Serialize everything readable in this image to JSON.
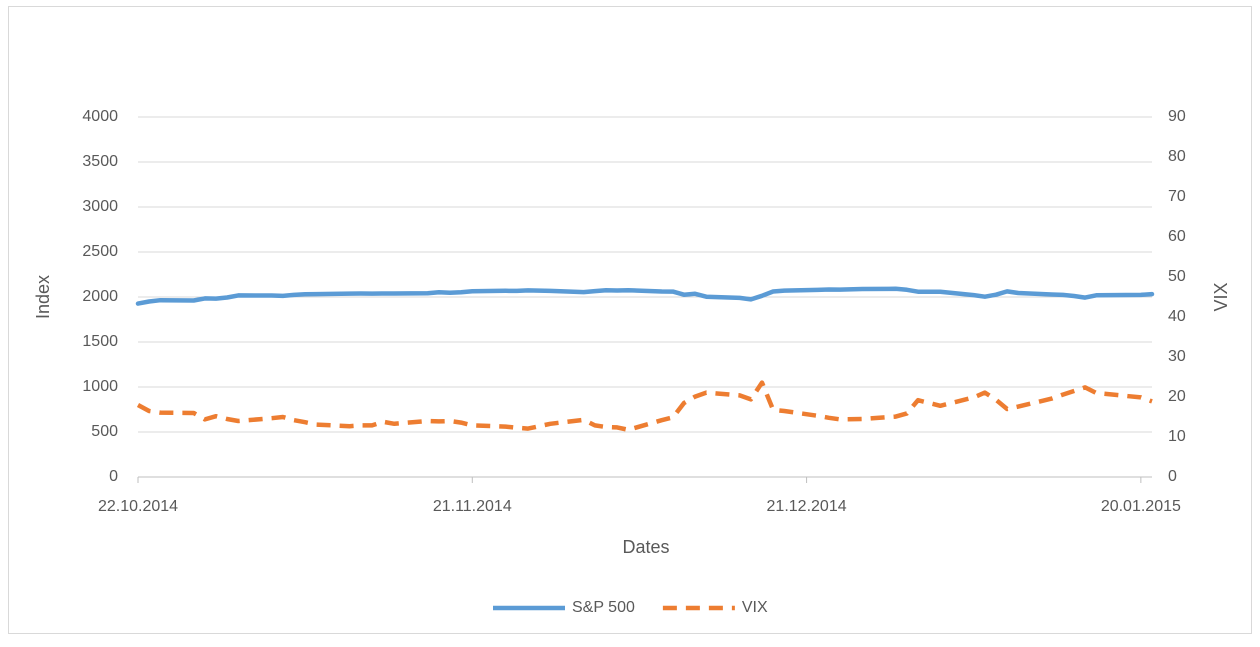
{
  "chart_data": {
    "type": "line",
    "x_label": "Dates",
    "y_label": "Index",
    "y2_label": "VIX",
    "x": [
      "22.10.2014",
      "23.10.2014",
      "24.10.2014",
      "27.10.2014",
      "28.10.2014",
      "29.10.2014",
      "30.10.2014",
      "31.10.2014",
      "03.11.2014",
      "04.11.2014",
      "05.11.2014",
      "06.11.2014",
      "07.11.2014",
      "10.11.2014",
      "11.11.2014",
      "12.11.2014",
      "13.11.2014",
      "14.11.2014",
      "17.11.2014",
      "18.11.2014",
      "19.11.2014",
      "20.11.2014",
      "21.11.2014",
      "24.11.2014",
      "25.11.2014",
      "26.11.2014",
      "28.11.2014",
      "01.12.2014",
      "02.12.2014",
      "03.12.2014",
      "04.12.2014",
      "05.12.2014",
      "08.12.2014",
      "09.12.2014",
      "10.12.2014",
      "11.12.2014",
      "12.12.2014",
      "15.12.2014",
      "16.12.2014",
      "17.12.2014",
      "18.12.2014",
      "19.12.2014",
      "22.12.2014",
      "23.12.2014",
      "24.12.2014",
      "26.12.2014",
      "29.12.2014",
      "30.12.2014",
      "31.12.2014",
      "02.01.2015",
      "05.01.2015",
      "06.01.2015",
      "07.01.2015",
      "08.01.2015",
      "09.01.2015",
      "12.01.2015",
      "13.01.2015",
      "14.01.2015",
      "15.01.2015",
      "16.01.2015",
      "20.01.2015",
      "21.01.2015"
    ],
    "series": [
      {
        "name": "S&P 500",
        "color": "#5b9bd5",
        "axis": "y",
        "values": [
          1927,
          1950,
          1964,
          1961,
          1985,
          1982,
          1994,
          2018,
          2017,
          2012,
          2023,
          2031,
          2032,
          2038,
          2039,
          2038,
          2039,
          2039,
          2041,
          2052,
          2048,
          2053,
          2064,
          2069,
          2068,
          2073,
          2068,
          2054,
          2066,
          2075,
          2072,
          2076,
          2061,
          2060,
          2026,
          2036,
          2003,
          1990,
          1973,
          2013,
          2061,
          2071,
          2079,
          2083,
          2082,
          2089,
          2091,
          2080,
          2059,
          2058,
          2021,
          2003,
          2026,
          2062,
          2045,
          2028,
          2023,
          2011,
          1993,
          2019,
          2023,
          2032
        ]
      },
      {
        "name": "VIX",
        "color": "#ed7d31",
        "axis": "y2",
        "dash": true,
        "values": [
          18.0,
          16.5,
          16.1,
          16.0,
          14.4,
          15.2,
          14.5,
          14.0,
          14.7,
          15.0,
          14.2,
          13.7,
          13.1,
          12.7,
          12.9,
          12.9,
          13.8,
          13.3,
          14.0,
          13.9,
          14.0,
          13.6,
          12.9,
          12.6,
          12.3,
          12.1,
          13.3,
          14.3,
          12.9,
          12.5,
          12.4,
          11.8,
          14.2,
          14.9,
          18.5,
          20.1,
          21.1,
          20.4,
          19.4,
          23.6,
          16.8,
          16.5,
          15.3,
          14.8,
          14.4,
          14.5,
          15.1,
          15.9,
          19.2,
          17.8,
          19.9,
          21.1,
          19.3,
          17.0,
          17.6,
          19.6,
          20.6,
          21.5,
          22.4,
          21.0,
          19.9,
          18.9
        ]
      }
    ],
    "xlim": [
      "22.10.2014",
      "21.01.2015"
    ],
    "xticks": [
      "22.10.2014",
      "21.11.2014",
      "21.12.2014",
      "20.01.2015"
    ],
    "ylim": [
      0,
      4000
    ],
    "yticks": [
      0,
      500,
      1000,
      1500,
      2000,
      2500,
      3000,
      3500,
      4000
    ],
    "y2lim": [
      0,
      90
    ],
    "y2ticks": [
      0,
      10,
      20,
      30,
      40,
      50,
      60,
      70,
      80,
      90
    ],
    "grid": true,
    "legend": "bottom"
  }
}
